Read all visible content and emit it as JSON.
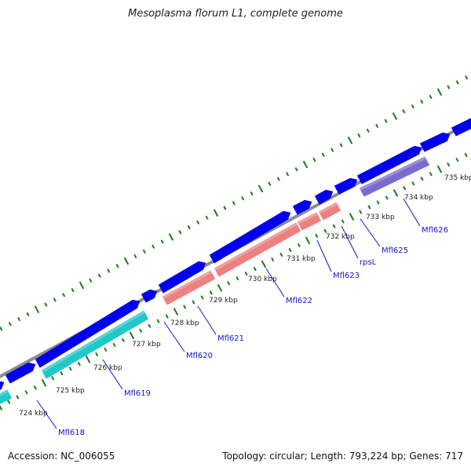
{
  "header": {
    "title": "Mesoplasma florum L1, complete genome"
  },
  "footer": {
    "accession": "Accession: NC_006055",
    "summary": "Topology: circular; Length: 793,224 bp; Genes: 717"
  },
  "map": {
    "colors": {
      "backbone": "#8c8c8c",
      "forward_feature": "#0000ee",
      "tick_major": "#1a7a1a",
      "tick_minor": "#1a7a1a",
      "gene_label": "#1414c8",
      "cyan_feature": "#20c8c8",
      "pink_feature": "#ee8080",
      "purple_feature": "#7b6bd0"
    },
    "kbp_ticks": [
      {
        "label": "724 kbp"
      },
      {
        "label": "725 kbp"
      },
      {
        "label": "726 kbp"
      },
      {
        "label": "727 kbp"
      },
      {
        "label": "728 kbp"
      },
      {
        "label": "729 kbp"
      },
      {
        "label": "730 kbp"
      },
      {
        "label": "731 kbp"
      },
      {
        "label": "732 kbp"
      },
      {
        "label": "733 kbp"
      },
      {
        "label": "734 kbp"
      },
      {
        "label": "735 kbp"
      }
    ],
    "genes": [
      {
        "name": "Mfl618"
      },
      {
        "name": "Mfl619"
      },
      {
        "name": "Mfl620"
      },
      {
        "name": "Mfl621"
      },
      {
        "name": "Mfl622"
      },
      {
        "name": "Mfl623"
      },
      {
        "name": "rpsL"
      },
      {
        "name": "Mfl625"
      },
      {
        "name": "Mfl626"
      }
    ]
  }
}
